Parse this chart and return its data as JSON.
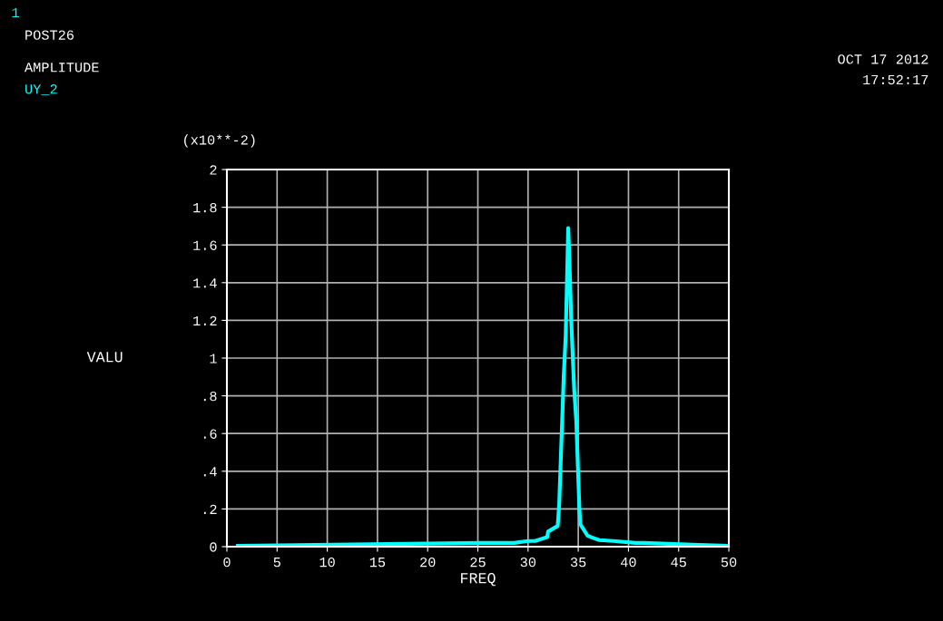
{
  "chart_data": {
    "type": "line",
    "title": "POST26",
    "subtitle": "AMPLITUDE",
    "xlabel": "FREQ",
    "ylabel": "VALU",
    "annotations": [
      "1",
      "OCT 17 2012",
      "17:52:17",
      "(x10**-2)"
    ],
    "xlim": [
      0,
      50
    ],
    "xticks": [
      0,
      5,
      10,
      15,
      20,
      25,
      30,
      35,
      40,
      45,
      50
    ],
    "ylim": [
      0,
      2
    ],
    "yticks": [
      0,
      {
        "value": 0.2,
        "label": ".2"
      },
      {
        "value": 0.4,
        "label": ".4"
      },
      {
        "value": 0.6,
        "label": ".6"
      },
      {
        "value": 0.8,
        "label": ".8"
      },
      1,
      1.2,
      1.4,
      1.6,
      1.8,
      2
    ],
    "grid": true,
    "marker": "none",
    "line_style": "solid",
    "series": [
      {
        "name": "UY_2",
        "color": "#00ffff",
        "x": [
          1.1,
          10.6,
          25.4,
          28.6,
          30.0,
          30.7,
          31.9,
          32.0,
          32.95,
          33.1,
          33.25,
          33.4,
          33.55,
          33.75,
          34.0,
          34.1,
          34.3,
          34.45,
          34.6,
          34.8,
          34.96,
          35.1,
          35.2,
          35.9,
          36.3,
          37.1,
          38.5,
          40.7,
          41.5,
          46.4,
          50.0
        ],
        "values": [
          0.005,
          0.01,
          0.02,
          0.02,
          0.03,
          0.03,
          0.05,
          0.08,
          0.11,
          0.22,
          0.45,
          0.67,
          0.9,
          1.12,
          1.69,
          1.55,
          1.2,
          1.01,
          0.83,
          0.67,
          0.43,
          0.22,
          0.12,
          0.06,
          0.05,
          0.035,
          0.03,
          0.02,
          0.02,
          0.01,
          0.005
        ]
      }
    ]
  }
}
